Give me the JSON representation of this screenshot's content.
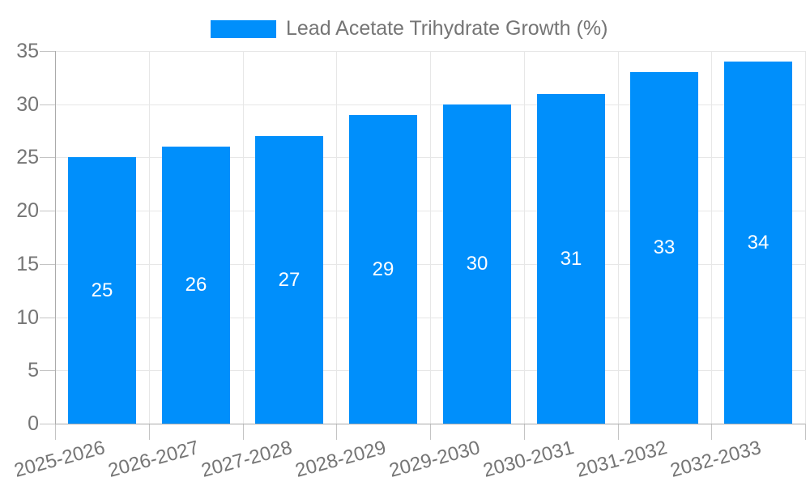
{
  "legend": {
    "label": "Lead Acetate Trihydrate Growth (%)",
    "marker_color": "#008FFB"
  },
  "chart_data": {
    "type": "bar",
    "title": "",
    "categories": [
      "2025-2026",
      "2026-2027",
      "2027-2028",
      "2028-2029",
      "2029-2030",
      "2030-2031",
      "2031-2032",
      "2032-2033"
    ],
    "series": [
      {
        "name": "Lead Acetate Trihydrate Growth (%)",
        "values": [
          25,
          26,
          27,
          29,
          30,
          31,
          33,
          34
        ]
      }
    ],
    "yticks": [
      0,
      5,
      10,
      15,
      20,
      25,
      30,
      35
    ],
    "ylim": [
      0,
      35
    ],
    "bar_color": "#008FFB",
    "data_label_color": "#ffffff",
    "axis_text_color": "#757575",
    "gridline_color": "#e7e7e7",
    "axis_line_color": "#ababab",
    "grid": "horizontal-and-vertical",
    "legend_position": "top",
    "xlabel": "",
    "ylabel": ""
  }
}
